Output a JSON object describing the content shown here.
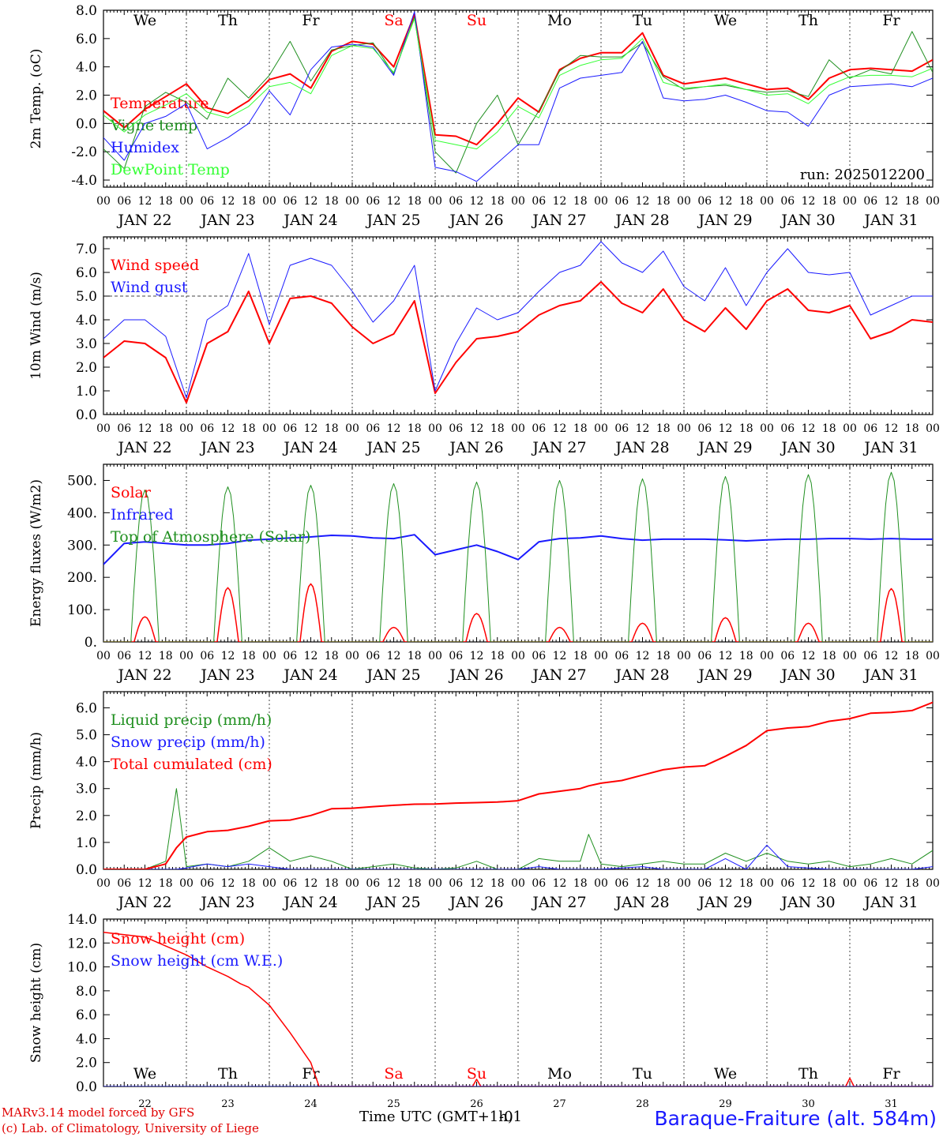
{
  "days": {
    "weekdays": [
      "We",
      "Th",
      "Fr",
      "Sa",
      "Su",
      "Mo",
      "Tu",
      "We",
      "Th",
      "Fr"
    ],
    "weekend_flags": [
      false,
      false,
      false,
      true,
      true,
      false,
      false,
      false,
      false,
      false
    ],
    "dates": [
      "JAN 22",
      "JAN 23",
      "JAN 24",
      "JAN 25",
      "JAN 26",
      "JAN 27",
      "JAN 28",
      "JAN 29",
      "JAN 30",
      "JAN 31"
    ],
    "day_numbers": [
      "22",
      "23",
      "24",
      "25",
      "26",
      "27",
      "28",
      "29",
      "30",
      "31"
    ],
    "hour_ticks": [
      "00",
      "06",
      "12",
      "18"
    ],
    "last_tick": "00"
  },
  "colors": {
    "red": "#ff0000",
    "green": "#1f8f1f",
    "blue": "#1a1aff",
    "lightgreen": "#33ff33",
    "axis": "#000000",
    "grid": "#444444"
  },
  "footer": {
    "model": "MARv3.14 model forced by GFS",
    "credit": "(c) Lab. of Climatology, University of Liege",
    "xlabel": "Time UTC (GMT+1h)",
    "xlabel_overlay": "-01",
    "station": "Baraque-Fraiture (alt. 584m)"
  },
  "chart_data": [
    {
      "type": "line",
      "ylabel": "2m Temp. (oC)",
      "ylim": [
        -4.5,
        8.0
      ],
      "yticks": [
        "8.0",
        "6.0",
        "4.0",
        "2.0",
        "0.0",
        "-2.0",
        "-4.0"
      ],
      "ytick_values": [
        8,
        6,
        4,
        2,
        0,
        -2,
        -4
      ],
      "reference_line": 0,
      "annotation": "run: 2025012200",
      "x_days": [
        0,
        0.25,
        0.5,
        0.75,
        1,
        1.25,
        1.5,
        1.75,
        2,
        2.25,
        2.5,
        2.75,
        3,
        3.25,
        3.5,
        3.75,
        4,
        4.25,
        4.5,
        4.75,
        5,
        5.25,
        5.5,
        5.75,
        6,
        6.25,
        6.5,
        6.75,
        7,
        7.25,
        7.5,
        7.75,
        8,
        8.25,
        8.5,
        8.75,
        9,
        9.25,
        9.5,
        9.75,
        10
      ],
      "series": [
        {
          "name": "Temperature",
          "color": "red",
          "width": 2,
          "values": [
            0.9,
            -0.3,
            1.0,
            1.9,
            2.8,
            1.1,
            0.7,
            1.6,
            3.1,
            3.5,
            2.5,
            5.1,
            5.8,
            5.6,
            4.0,
            7.7,
            -0.8,
            -0.9,
            -1.5,
            0.0,
            1.8,
            0.8,
            3.8,
            4.6,
            5.0,
            5.0,
            6.4,
            3.4,
            2.8,
            3.0,
            3.2,
            2.8,
            2.4,
            2.5,
            1.7,
            3.2,
            3.8,
            3.9,
            3.8,
            3.7,
            4.5
          ]
        },
        {
          "name": "Vigne temp",
          "color": "green",
          "width": 1,
          "values": [
            -1.8,
            -3.2,
            1.2,
            2.2,
            1.5,
            0.3,
            3.2,
            1.8,
            3.4,
            5.8,
            3.0,
            5.2,
            5.5,
            5.7,
            3.5,
            7.5,
            -2.0,
            -3.5,
            0.0,
            2.0,
            -1.5,
            0.9,
            3.7,
            4.8,
            4.7,
            4.7,
            5.7,
            3.3,
            2.4,
            2.6,
            2.7,
            2.4,
            2.2,
            2.3,
            1.9,
            4.5,
            3.2,
            3.8,
            3.5,
            6.5,
            3.6
          ]
        },
        {
          "name": "Humidex",
          "color": "blue",
          "width": 1,
          "values": [
            -1.0,
            -2.6,
            0.0,
            0.5,
            1.4,
            -1.8,
            -1.0,
            0.0,
            2.3,
            0.6,
            3.8,
            5.4,
            5.6,
            5.4,
            3.4,
            7.9,
            -3.1,
            -3.4,
            -4.1,
            -2.8,
            -1.5,
            -1.5,
            2.5,
            3.2,
            3.4,
            3.6,
            5.8,
            1.8,
            1.6,
            1.7,
            2.0,
            1.5,
            0.9,
            0.8,
            -0.2,
            2.0,
            2.6,
            2.7,
            2.8,
            2.6,
            3.2
          ]
        },
        {
          "name": "DewPoint Temp",
          "color": "lightgreen",
          "width": 1,
          "values": [
            0.6,
            -0.6,
            0.6,
            1.3,
            2.1,
            0.8,
            0.4,
            1.2,
            2.6,
            2.9,
            2.1,
            4.8,
            5.5,
            5.3,
            3.6,
            7.4,
            -1.2,
            -1.5,
            -1.8,
            -0.6,
            1.2,
            0.4,
            3.4,
            4.1,
            4.5,
            4.6,
            6.0,
            2.9,
            2.5,
            2.6,
            2.8,
            2.4,
            2.0,
            2.1,
            1.4,
            2.7,
            3.3,
            3.4,
            3.4,
            3.3,
            3.9
          ]
        }
      ]
    },
    {
      "type": "line",
      "ylabel": "10m Wind (m/s)",
      "ylim": [
        0.0,
        7.5
      ],
      "yticks": [
        "7.0",
        "6.0",
        "5.0",
        "4.0",
        "3.0",
        "2.0",
        "1.0",
        "0.0"
      ],
      "ytick_values": [
        7,
        6,
        5,
        4,
        3,
        2,
        1,
        0
      ],
      "reference_line": 5,
      "x_days": [
        0,
        0.25,
        0.5,
        0.75,
        1,
        1.25,
        1.5,
        1.75,
        2,
        2.25,
        2.5,
        2.75,
        3,
        3.25,
        3.5,
        3.75,
        4,
        4.25,
        4.5,
        4.75,
        5,
        5.25,
        5.5,
        5.75,
        6,
        6.25,
        6.5,
        6.75,
        7,
        7.25,
        7.5,
        7.75,
        8,
        8.25,
        8.5,
        8.75,
        9,
        9.25,
        9.5,
        9.75,
        10
      ],
      "series": [
        {
          "name": "Wind speed",
          "color": "red",
          "width": 2,
          "values": [
            2.4,
            3.1,
            3.0,
            2.4,
            0.5,
            3.0,
            3.5,
            5.2,
            3.0,
            4.9,
            5.0,
            4.7,
            3.7,
            3.0,
            3.4,
            4.8,
            0.9,
            2.2,
            3.2,
            3.3,
            3.5,
            4.2,
            4.6,
            4.8,
            5.6,
            4.7,
            4.3,
            5.3,
            4.0,
            3.5,
            4.5,
            3.6,
            4.8,
            5.3,
            4.4,
            4.3,
            4.6,
            3.2,
            3.5,
            4.0,
            3.9
          ]
        },
        {
          "name": "Wind gust",
          "color": "blue",
          "width": 1,
          "values": [
            3.2,
            4.0,
            4.0,
            3.3,
            0.7,
            4.0,
            4.6,
            6.8,
            3.8,
            6.3,
            6.6,
            6.3,
            5.2,
            3.9,
            4.8,
            6.3,
            1.0,
            3.0,
            4.5,
            4.0,
            4.3,
            5.2,
            6.0,
            6.3,
            7.3,
            6.4,
            6.0,
            6.9,
            5.4,
            4.8,
            6.2,
            4.6,
            6.0,
            7.0,
            6.0,
            5.9,
            6.0,
            4.2,
            4.6,
            5.0,
            5.0
          ]
        }
      ]
    },
    {
      "type": "line",
      "ylabel": "Energy fluxes (W/m2)",
      "ylim": [
        0,
        550
      ],
      "yticks": [
        "500.",
        "400.",
        "300.",
        "200.",
        "100.",
        "0."
      ],
      "ytick_values": [
        500,
        400,
        300,
        200,
        100,
        0
      ],
      "series": [
        {
          "name": "Solar",
          "color": "red",
          "width": 1.5,
          "peaks": [
            78,
            168,
            180,
            45,
            88,
            45,
            58,
            75,
            58,
            165
          ]
        },
        {
          "name": "Infrared",
          "color": "blue",
          "width": 2,
          "x_days": [
            0,
            0.25,
            0.5,
            0.75,
            1,
            1.25,
            1.5,
            1.75,
            2,
            2.25,
            2.5,
            2.75,
            3,
            3.25,
            3.5,
            3.75,
            4,
            4.25,
            4.5,
            4.75,
            5,
            5.25,
            5.5,
            5.75,
            6,
            6.25,
            6.5,
            6.75,
            7,
            7.25,
            7.5,
            7.75,
            8,
            8.25,
            8.5,
            8.75,
            9,
            9.25,
            9.5,
            9.75,
            10
          ],
          "values": [
            240,
            305,
            310,
            305,
            300,
            300,
            305,
            315,
            318,
            322,
            325,
            330,
            328,
            322,
            320,
            332,
            270,
            285,
            300,
            280,
            255,
            310,
            320,
            322,
            328,
            320,
            315,
            318,
            318,
            318,
            316,
            313,
            316,
            318,
            318,
            320,
            320,
            318,
            320,
            318,
            318
          ]
        },
        {
          "name": "Top of Atmosphere (Solar)",
          "color": "green",
          "width": 1,
          "peaks": [
            470,
            480,
            485,
            490,
            495,
            500,
            505,
            512,
            518,
            525
          ]
        }
      ]
    },
    {
      "type": "line",
      "ylabel": "Precip (mm/h)",
      "ylim": [
        0.0,
        6.6
      ],
      "yticks": [
        "6.0",
        "5.0",
        "4.0",
        "3.0",
        "2.0",
        "1.0",
        "0.0"
      ],
      "ytick_values": [
        6,
        5,
        4,
        3,
        2,
        1,
        0
      ],
      "x_days": [
        0,
        0.25,
        0.5,
        0.75,
        0.88,
        1,
        1.25,
        1.5,
        1.75,
        2,
        2.25,
        2.5,
        2.75,
        3,
        3.25,
        3.5,
        3.75,
        4,
        4.25,
        4.5,
        4.75,
        5,
        5.25,
        5.5,
        5.75,
        5.85,
        6,
        6.25,
        6.5,
        6.75,
        7,
        7.25,
        7.5,
        7.75,
        8,
        8.25,
        8.5,
        8.75,
        9,
        9.25,
        9.5,
        9.75,
        10
      ],
      "series": [
        {
          "name": "Liquid precip (mm/h)",
          "color": "green",
          "width": 1,
          "values": [
            0,
            0,
            0,
            0.3,
            3.0,
            0.1,
            0.2,
            0.1,
            0.3,
            0.8,
            0.3,
            0.5,
            0.3,
            0,
            0.1,
            0.2,
            0.05,
            0,
            0.05,
            0.3,
            0,
            0,
            0.4,
            0.3,
            0.3,
            1.3,
            0.2,
            0.1,
            0.2,
            0.3,
            0.2,
            0.2,
            0.6,
            0.3,
            0.6,
            0.3,
            0.2,
            0.3,
            0.1,
            0.2,
            0.4,
            0.2,
            0.7
          ]
        },
        {
          "name": "Snow precip (mm/h)",
          "color": "blue",
          "width": 1,
          "values": [
            0,
            0,
            0,
            0,
            0,
            0.05,
            0.2,
            0.1,
            0.2,
            0.1,
            0,
            0,
            0,
            0,
            0,
            0,
            0,
            0,
            0,
            0,
            0,
            0,
            0.1,
            0,
            0,
            0,
            0,
            0.05,
            0.1,
            0,
            0,
            0,
            0.4,
            0,
            0.9,
            0.1,
            0.05,
            0,
            0,
            0,
            0,
            0,
            0.1
          ]
        },
        {
          "name": "Total cumulated (cm)",
          "color": "red",
          "width": 2,
          "values": [
            0,
            0,
            0,
            0.2,
            0.8,
            1.2,
            1.4,
            1.45,
            1.6,
            1.8,
            1.83,
            2.0,
            2.25,
            2.27,
            2.33,
            2.38,
            2.42,
            2.43,
            2.46,
            2.48,
            2.5,
            2.55,
            2.8,
            2.9,
            3.0,
            3.1,
            3.2,
            3.3,
            3.5,
            3.7,
            3.8,
            3.85,
            4.2,
            4.6,
            5.15,
            5.25,
            5.3,
            5.5,
            5.6,
            5.8,
            5.83,
            5.9,
            6.2
          ]
        }
      ]
    },
    {
      "type": "line",
      "ylabel": "Snow height (cm)",
      "ylim": [
        0.0,
        14.0
      ],
      "yticks": [
        "14.0",
        "12.0",
        "10.0",
        "8.0",
        "6.0",
        "4.0",
        "2.0",
        "0.0"
      ],
      "ytick_values": [
        14,
        12,
        10,
        8,
        6,
        4,
        2,
        0
      ],
      "x_days": [
        0,
        0.5,
        1,
        1.25,
        1.5,
        1.65,
        1.75,
        2,
        2.25,
        2.5,
        2.6,
        3,
        4,
        4.45,
        4.5,
        4.55,
        5,
        6,
        7,
        8,
        8.95,
        9,
        9.05,
        10
      ],
      "series": [
        {
          "name": "Snow height (cm)",
          "color": "red",
          "width": 1.5,
          "values": [
            12.9,
            12.5,
            11.0,
            10.0,
            9.2,
            8.6,
            8.3,
            6.8,
            4.5,
            2.0,
            0,
            0,
            0,
            0,
            0.6,
            0,
            0,
            0,
            0,
            0,
            0,
            0.7,
            0,
            0
          ]
        },
        {
          "name": "Snow height (cm W.E.)",
          "color": "blue",
          "width": 1,
          "values": [
            0,
            0,
            0,
            0,
            0,
            0,
            0,
            0,
            0,
            0,
            0,
            0,
            0,
            0,
            0,
            0,
            0,
            0,
            0,
            0,
            0,
            0,
            0,
            0
          ]
        }
      ]
    }
  ]
}
